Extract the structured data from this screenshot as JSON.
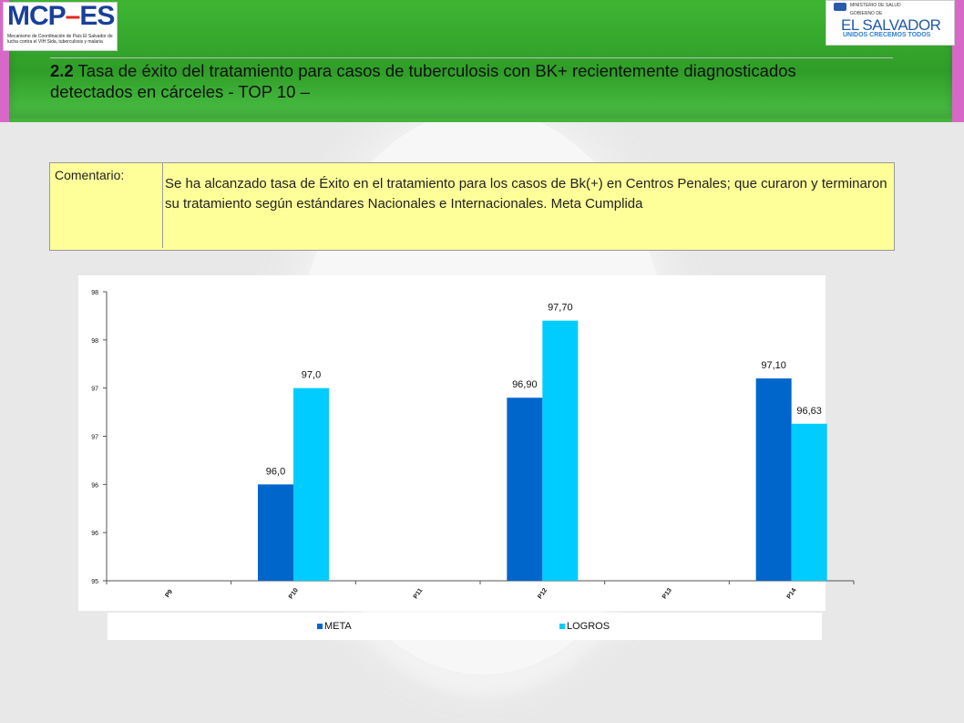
{
  "header": {
    "logo_left": {
      "brand_main": "MCP",
      "brand_dash": "–",
      "brand_suffix": "ES",
      "subtitle": "Mecanismo de Coordinación de País El Salvador de lucha contra el VIH Sida, tuberculosis y malaria"
    },
    "logo_right": {
      "line1": "MINISTERIO DE SALUD",
      "line2": "GOBIERNO DE",
      "name": "EL SALVADOR",
      "motto": "UNIDOS CRECEMOS TODOS"
    },
    "title_number": "2.2",
    "title_text": " Tasa de éxito del tratamiento para casos de tuberculosis con BK+ recientemente diagnosticados detectados en cárceles - TOP 10 –"
  },
  "comment": {
    "label": "Comentario:",
    "text": "Se ha alcanzado tasa de Éxito en el tratamiento para los casos de Bk(+) en Centros Penales; que curaron y terminaron su tratamiento según estándares Nacionales e Internacionales. Meta Cumplida"
  },
  "colors": {
    "meta": "#0066cc",
    "logros": "#00ccff",
    "comment_bg": "#ffff99",
    "banner": "#3aa830"
  },
  "chart_data": {
    "type": "bar",
    "categories": [
      "P9",
      "P10",
      "P11",
      "P12",
      "P13",
      "P14"
    ],
    "series": [
      {
        "name": "META",
        "values": [
          null,
          96.0,
          null,
          96.9,
          null,
          97.1
        ],
        "labels": [
          "",
          "96,0",
          "",
          "96,90",
          "",
          "97,10"
        ],
        "color": "#0066cc"
      },
      {
        "name": "LOGROS",
        "values": [
          null,
          97.0,
          null,
          97.7,
          null,
          96.63
        ],
        "labels": [
          "",
          "97,0",
          "",
          "97,70",
          "",
          "96,63"
        ],
        "color": "#00ccff"
      }
    ],
    "ylim": [
      95.0,
      98.0
    ],
    "ytick_values": [
      95.0,
      95.5,
      96.0,
      96.5,
      97.0,
      97.5,
      98.0
    ],
    "ytick_labels": [
      "95",
      "96",
      "96",
      "97",
      "97",
      "98",
      "98"
    ],
    "legend_position": "bottom",
    "grid": false
  }
}
